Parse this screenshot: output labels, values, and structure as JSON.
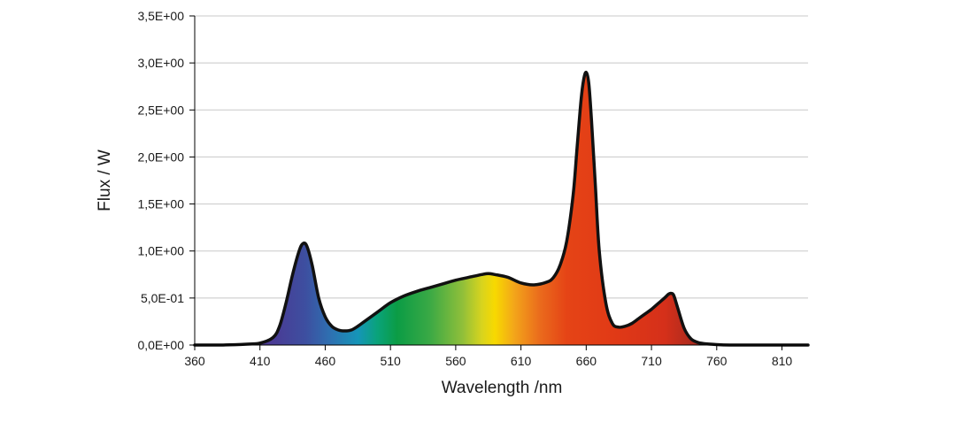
{
  "chart_data": {
    "type": "area",
    "title": "",
    "xlabel": "Wavelength /nm",
    "ylabel": "Flux / W",
    "xlim": [
      360,
      830
    ],
    "ylim": [
      0,
      3.5
    ],
    "x_ticks": [
      360,
      410,
      460,
      510,
      560,
      610,
      660,
      710,
      760,
      810
    ],
    "y_ticks": [
      0,
      0.5,
      1.0,
      1.5,
      2.0,
      2.5,
      3.0,
      3.5
    ],
    "y_tick_labels": [
      "0,0E+00",
      "5,0E-01",
      "1,0E+00",
      "1,5E+00",
      "2,0E+00",
      "2,5E+00",
      "3,0E+00",
      "3,5E+00"
    ],
    "x_tick_labels": [
      "360",
      "410",
      "460",
      "510",
      "560",
      "610",
      "660",
      "710",
      "760",
      "810"
    ],
    "grid": "horizontal",
    "fill": "visible-spectrum colors",
    "series": [
      {
        "x": [
          360,
          380,
          400,
          410,
          420,
          425,
          430,
          435,
          440,
          443,
          446,
          450,
          455,
          460,
          465,
          470,
          475,
          480,
          485,
          490,
          500,
          510,
          520,
          530,
          540,
          550,
          560,
          570,
          580,
          585,
          590,
          600,
          610,
          620,
          630,
          635,
          640,
          645,
          650,
          653,
          656,
          658,
          660,
          662,
          664,
          667,
          670,
          675,
          680,
          685,
          690,
          695,
          700,
          705,
          710,
          715,
          720,
          723,
          725,
          727,
          730,
          735,
          740,
          745,
          750,
          760,
          770,
          780,
          790,
          800,
          810,
          820,
          830
        ],
        "y": [
          0.0,
          0.0,
          0.01,
          0.02,
          0.08,
          0.2,
          0.45,
          0.75,
          1.0,
          1.08,
          1.05,
          0.85,
          0.5,
          0.3,
          0.2,
          0.16,
          0.15,
          0.16,
          0.2,
          0.25,
          0.35,
          0.45,
          0.52,
          0.57,
          0.61,
          0.65,
          0.69,
          0.72,
          0.75,
          0.76,
          0.75,
          0.72,
          0.66,
          0.64,
          0.67,
          0.72,
          0.85,
          1.1,
          1.6,
          2.1,
          2.6,
          2.82,
          2.9,
          2.78,
          2.4,
          1.7,
          1.0,
          0.45,
          0.23,
          0.19,
          0.2,
          0.23,
          0.28,
          0.33,
          0.38,
          0.44,
          0.5,
          0.54,
          0.55,
          0.53,
          0.4,
          0.18,
          0.07,
          0.03,
          0.015,
          0.005,
          0.0,
          0.0,
          0.0,
          0.0,
          0.0,
          0.0,
          0.0
        ]
      }
    ],
    "colors": {
      "curve": "#111111",
      "gridline": "#c8c8c8",
      "axis": "#000000",
      "spectrum_stops": [
        {
          "nm": 360,
          "color": "#5b3a8c"
        },
        {
          "nm": 420,
          "color": "#4a3b95"
        },
        {
          "nm": 445,
          "color": "#3d4fa0"
        },
        {
          "nm": 465,
          "color": "#2d72b2"
        },
        {
          "nm": 485,
          "color": "#1595b8"
        },
        {
          "nm": 500,
          "color": "#0aa37a"
        },
        {
          "nm": 515,
          "color": "#0b9c45"
        },
        {
          "nm": 540,
          "color": "#3aa945"
        },
        {
          "nm": 565,
          "color": "#8fbf3a"
        },
        {
          "nm": 580,
          "color": "#d8d41e"
        },
        {
          "nm": 590,
          "color": "#f7d900"
        },
        {
          "nm": 605,
          "color": "#f3a51a"
        },
        {
          "nm": 625,
          "color": "#ea6a1c"
        },
        {
          "nm": 645,
          "color": "#e54416"
        },
        {
          "nm": 680,
          "color": "#e13a16"
        },
        {
          "nm": 720,
          "color": "#d5301a"
        },
        {
          "nm": 745,
          "color": "#a7291e"
        },
        {
          "nm": 830,
          "color": "#7a1e1e"
        }
      ]
    }
  }
}
